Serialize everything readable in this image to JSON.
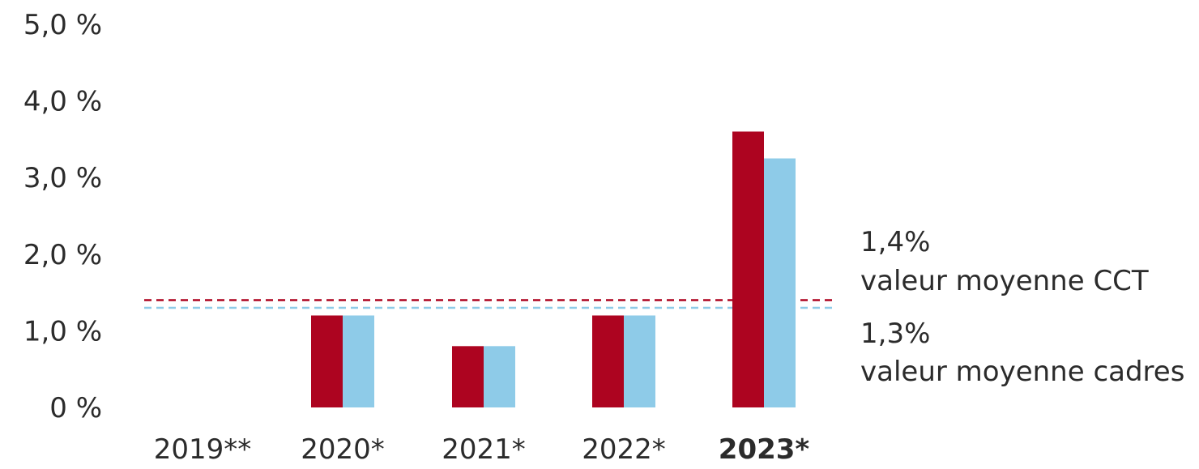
{
  "chart_data": {
    "type": "bar",
    "title": "",
    "xlabel": "",
    "ylabel": "",
    "ylim": [
      0,
      5
    ],
    "y_ticks": [
      {
        "value": 0,
        "label": "0 %"
      },
      {
        "value": 1,
        "label": "1,0 %"
      },
      {
        "value": 2,
        "label": "2,0 %"
      },
      {
        "value": 3,
        "label": "3,0 %"
      },
      {
        "value": 4,
        "label": "4,0 %"
      },
      {
        "value": 5,
        "label": "5,0 %"
      }
    ],
    "categories": [
      "2019**",
      "2020*",
      "2021*",
      "2022*",
      "2023*"
    ],
    "highlight_category": "2023*",
    "series": [
      {
        "color": "#ad0420",
        "values": [
          0,
          1.2,
          0.8,
          1.2,
          3.6
        ]
      },
      {
        "color": "#8ecbe8",
        "values": [
          0,
          1.2,
          0.8,
          1.2,
          3.25
        ]
      }
    ],
    "reference_lines": [
      {
        "value": 1.4,
        "color": "#ad0420",
        "style": "dashed",
        "value_label": "1,4%",
        "label": "valeur moyenne CCT"
      },
      {
        "value": 1.3,
        "color": "#8ecbe8",
        "style": "dashed",
        "value_label": "1,3%",
        "label": "valeur moyenne cadres"
      }
    ],
    "grid": false,
    "legend": "none"
  }
}
